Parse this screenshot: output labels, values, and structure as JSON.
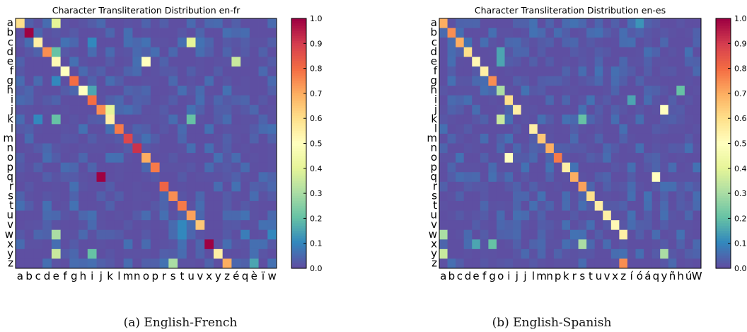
{
  "chart_data": [
    {
      "type": "heatmap",
      "title": "Character Transliteration Distribution en-fr",
      "caption": "(a) English-French",
      "y_categories": [
        "a",
        "b",
        "c",
        "d",
        "e",
        "f",
        "g",
        "h",
        "i",
        "j",
        "k",
        "l",
        "m",
        "n",
        "o",
        "p",
        "q",
        "r",
        "s",
        "t",
        "u",
        "v",
        "w",
        "x",
        "y",
        "z"
      ],
      "x_categories": [
        "a",
        "b",
        "c",
        "d",
        "e",
        "f",
        "g",
        "h",
        "i",
        "j",
        "k",
        "l",
        "m",
        "n",
        "o",
        "p",
        "r",
        "s",
        "t",
        "u",
        "v",
        "x",
        "y",
        "z",
        "é",
        "q",
        "è",
        "ï",
        "w"
      ],
      "colorbar": {
        "min": 0.0,
        "max": 1.0,
        "ticks": [
          "0.0",
          "0.1",
          "0.2",
          "0.3",
          "0.4",
          "0.5",
          "0.6",
          "0.7",
          "0.8",
          "0.9",
          "1.0"
        ]
      },
      "colormap": "Spectral_r",
      "cells": [
        [
          0,
          0,
          0.6
        ],
        [
          0,
          4,
          0.4
        ],
        [
          1,
          1,
          1.0
        ],
        [
          2,
          2,
          0.55
        ],
        [
          2,
          8,
          0.1
        ],
        [
          2,
          19,
          0.4
        ],
        [
          3,
          3,
          0.75
        ],
        [
          3,
          4,
          0.2
        ],
        [
          4,
          4,
          0.52
        ],
        [
          4,
          14,
          0.5
        ],
        [
          4,
          24,
          0.35
        ],
        [
          5,
          5,
          0.5
        ],
        [
          6,
          6,
          0.8
        ],
        [
          6,
          4,
          0.1
        ],
        [
          7,
          7,
          0.5
        ],
        [
          7,
          8,
          0.15
        ],
        [
          8,
          8,
          0.8
        ],
        [
          9,
          9,
          0.75
        ],
        [
          9,
          10,
          0.4
        ],
        [
          10,
          10,
          0.55
        ],
        [
          10,
          2,
          0.1
        ],
        [
          10,
          4,
          0.2
        ],
        [
          10,
          19,
          0.2
        ],
        [
          11,
          11,
          0.78
        ],
        [
          12,
          12,
          0.88
        ],
        [
          13,
          13,
          0.92
        ],
        [
          14,
          14,
          0.7
        ],
        [
          15,
          15,
          0.78
        ],
        [
          16,
          9,
          1.0
        ],
        [
          17,
          16,
          0.82
        ],
        [
          18,
          17,
          0.75
        ],
        [
          19,
          18,
          0.78
        ],
        [
          20,
          19,
          0.72
        ],
        [
          21,
          20,
          0.65
        ],
        [
          21,
          18,
          0.1
        ],
        [
          22,
          18,
          0.1
        ],
        [
          22,
          4,
          0.3
        ],
        [
          22,
          25,
          0.08
        ],
        [
          22,
          28,
          0.1
        ],
        [
          23,
          21,
          1.0
        ],
        [
          24,
          22,
          0.55
        ],
        [
          24,
          4,
          0.35
        ],
        [
          24,
          8,
          0.2
        ],
        [
          25,
          23,
          0.7
        ],
        [
          25,
          17,
          0.3
        ],
        [
          25,
          26,
          0.15
        ]
      ]
    },
    {
      "type": "heatmap",
      "title": "Character Transliteration Distribution en-es",
      "caption": "(b) English-Spanish",
      "y_categories": [
        "a",
        "b",
        "c",
        "d",
        "e",
        "f",
        "g",
        "h",
        "i",
        "j",
        "k",
        "l",
        "m",
        "n",
        "o",
        "p",
        "q",
        "r",
        "s",
        "t",
        "u",
        "v",
        "w",
        "x",
        "y",
        "z"
      ],
      "x_categories": [
        "a",
        "b",
        "c",
        "d",
        "e",
        "f",
        "g",
        "o",
        "i",
        "j",
        "j",
        "l",
        "m",
        "n",
        "p",
        "k",
        "r",
        "s",
        "t",
        "u",
        "v",
        "x",
        "z",
        "í",
        "ó",
        "á",
        "q",
        "y",
        "ñ",
        "h",
        "ú",
        "W"
      ],
      "colorbar": {
        "min": 0.0,
        "max": 1.0,
        "ticks": [
          "0.0",
          "0.1",
          "0.2",
          "0.3",
          "0.4",
          "0.5",
          "0.6",
          "0.7",
          "0.8",
          "0.9",
          "1.0"
        ]
      },
      "colormap": "Spectral_r",
      "cells": [
        [
          0,
          0,
          0.7
        ],
        [
          0,
          24,
          0.12
        ],
        [
          1,
          1,
          0.75
        ],
        [
          2,
          2,
          0.7
        ],
        [
          3,
          3,
          0.6
        ],
        [
          3,
          7,
          0.15
        ],
        [
          4,
          4,
          0.52
        ],
        [
          4,
          7,
          0.15
        ],
        [
          5,
          5,
          0.55
        ],
        [
          6,
          6,
          0.75
        ],
        [
          7,
          7,
          0.3
        ],
        [
          7,
          29,
          0.2
        ],
        [
          8,
          8,
          0.6
        ],
        [
          8,
          23,
          0.15
        ],
        [
          9,
          9,
          0.55
        ],
        [
          9,
          27,
          0.5
        ],
        [
          10,
          7,
          0.35
        ],
        [
          10,
          17,
          0.2
        ],
        [
          11,
          11,
          0.55
        ],
        [
          12,
          12,
          0.65
        ],
        [
          13,
          13,
          0.7
        ],
        [
          14,
          8,
          0.5
        ],
        [
          14,
          14,
          0.78
        ],
        [
          15,
          15,
          0.55
        ],
        [
          16,
          26,
          0.5
        ],
        [
          16,
          16,
          0.7
        ],
        [
          17,
          17,
          0.72
        ],
        [
          18,
          18,
          0.6
        ],
        [
          19,
          19,
          0.55
        ],
        [
          20,
          20,
          0.55
        ],
        [
          21,
          21,
          0.52
        ],
        [
          22,
          22,
          0.55
        ],
        [
          22,
          0,
          0.3
        ],
        [
          23,
          4,
          0.15
        ],
        [
          23,
          6,
          0.2
        ],
        [
          23,
          17,
          0.3
        ],
        [
          24,
          0,
          0.35
        ],
        [
          24,
          27,
          0.3
        ],
        [
          25,
          22,
          0.75
        ]
      ]
    }
  ]
}
